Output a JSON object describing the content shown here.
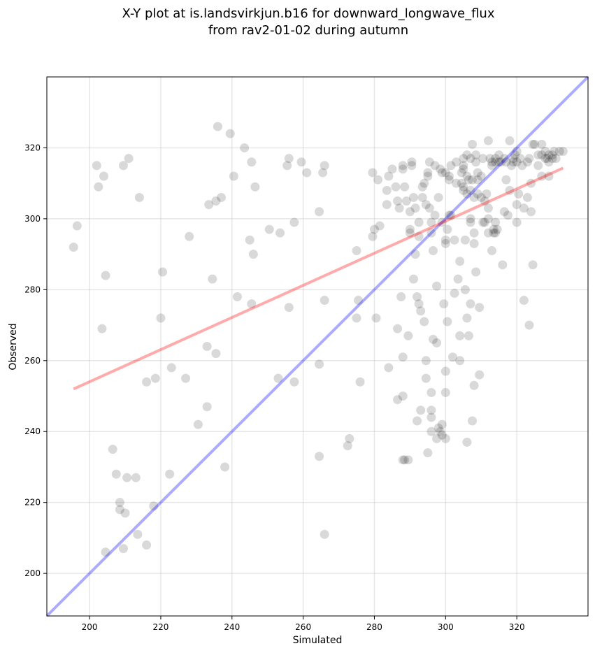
{
  "chart_data": {
    "type": "scatter",
    "title_line1": "X-Y plot at is.landsvirkjun.b16 for downward_longwave_flux",
    "title_line2": "from rav2-01-02 during autumn",
    "xlabel": "Simulated",
    "ylabel": "Observed",
    "xlim": [
      188,
      340
    ],
    "ylim": [
      188,
      340
    ],
    "xticks": [
      200,
      220,
      240,
      260,
      280,
      300,
      320
    ],
    "yticks": [
      200,
      220,
      240,
      260,
      280,
      300,
      320
    ],
    "grid": true,
    "colors": {
      "points": "#000000",
      "one_to_one": "#0000ff",
      "fit": "#ff0000"
    },
    "points": [
      [
        195.5,
        292
      ],
      [
        196.5,
        298
      ],
      [
        202,
        315
      ],
      [
        202.5,
        309
      ],
      [
        203.5,
        269
      ],
      [
        204,
        312
      ],
      [
        204.5,
        284
      ],
      [
        209.5,
        315
      ],
      [
        211,
        317
      ],
      [
        214,
        306
      ],
      [
        204.5,
        206
      ],
      [
        206.5,
        235
      ],
      [
        207.5,
        228
      ],
      [
        208.5,
        220
      ],
      [
        208.5,
        218
      ],
      [
        209.5,
        207
      ],
      [
        210,
        217
      ],
      [
        210.5,
        227
      ],
      [
        213,
        227
      ],
      [
        213.5,
        211
      ],
      [
        216,
        254
      ],
      [
        216,
        208
      ],
      [
        218,
        219
      ],
      [
        218.5,
        255
      ],
      [
        220.5,
        285
      ],
      [
        220,
        272
      ],
      [
        222.5,
        228
      ],
      [
        223,
        258
      ],
      [
        227,
        255
      ],
      [
        228,
        295
      ],
      [
        230.5,
        242
      ],
      [
        233,
        264
      ],
      [
        233.5,
        304
      ],
      [
        233,
        247
      ],
      [
        234.5,
        283
      ],
      [
        235.5,
        305
      ],
      [
        236,
        326
      ],
      [
        235.5,
        262
      ],
      [
        237,
        306
      ],
      [
        238,
        230
      ],
      [
        239.5,
        324
      ],
      [
        240.5,
        312
      ],
      [
        241.5,
        278
      ],
      [
        243.5,
        320
      ],
      [
        245,
        294
      ],
      [
        245.5,
        316
      ],
      [
        245.5,
        276
      ],
      [
        246,
        290
      ],
      [
        246.5,
        309
      ],
      [
        250.5,
        297
      ],
      [
        253.5,
        296
      ],
      [
        253,
        255
      ],
      [
        255.5,
        315
      ],
      [
        256,
        317
      ],
      [
        256,
        275
      ],
      [
        257.5,
        254
      ],
      [
        257.5,
        299
      ],
      [
        259.5,
        316
      ],
      [
        261,
        313
      ],
      [
        264.5,
        302
      ],
      [
        264.5,
        259
      ],
      [
        264.5,
        233
      ],
      [
        265.5,
        313
      ],
      [
        266,
        315
      ],
      [
        266,
        277
      ],
      [
        266,
        211
      ],
      [
        272.5,
        236
      ],
      [
        273,
        238
      ],
      [
        275,
        291
      ],
      [
        275,
        272
      ],
      [
        275.5,
        277
      ],
      [
        276,
        254
      ],
      [
        279.5,
        313
      ],
      [
        279.5,
        295
      ],
      [
        280,
        297
      ],
      [
        280.5,
        272
      ],
      [
        281,
        311
      ],
      [
        281.5,
        298
      ],
      [
        283.5,
        304
      ],
      [
        283.5,
        308
      ],
      [
        284,
        312
      ],
      [
        284,
        258
      ],
      [
        285,
        314
      ],
      [
        286,
        309
      ],
      [
        286.5,
        305
      ],
      [
        286.5,
        269
      ],
      [
        286.5,
        249
      ],
      [
        287,
        303
      ],
      [
        287.5,
        278
      ],
      [
        288,
        314
      ],
      [
        288,
        315
      ],
      [
        288,
        261
      ],
      [
        288,
        250
      ],
      [
        288,
        232
      ],
      [
        288.5,
        309
      ],
      [
        288.5,
        232
      ],
      [
        289,
        305
      ],
      [
        289.5,
        232
      ],
      [
        289.5,
        267
      ],
      [
        290,
        296
      ],
      [
        290,
        302
      ],
      [
        290,
        297
      ],
      [
        290.5,
        315
      ],
      [
        290.5,
        316
      ],
      [
        291,
        283
      ],
      [
        291,
        306
      ],
      [
        291.5,
        303
      ],
      [
        291.5,
        290
      ],
      [
        292,
        278
      ],
      [
        292,
        243
      ],
      [
        292.5,
        299
      ],
      [
        292.5,
        276
      ],
      [
        292.5,
        295
      ],
      [
        293,
        274
      ],
      [
        293,
        246
      ],
      [
        293.5,
        306
      ],
      [
        293.5,
        309
      ],
      [
        294,
        310
      ],
      [
        294,
        271
      ],
      [
        294.5,
        260
      ],
      [
        294.5,
        255
      ],
      [
        294.5,
        304
      ],
      [
        295,
        313
      ],
      [
        295,
        312
      ],
      [
        295,
        234
      ],
      [
        295.5,
        316
      ],
      [
        295.5,
        303
      ],
      [
        296,
        299
      ],
      [
        296,
        296
      ],
      [
        296,
        251
      ],
      [
        296,
        246
      ],
      [
        296,
        244
      ],
      [
        296,
        240
      ],
      [
        296.5,
        291
      ],
      [
        296.5,
        266
      ],
      [
        297,
        301
      ],
      [
        297,
        315
      ],
      [
        297.5,
        281
      ],
      [
        297.5,
        265
      ],
      [
        297.5,
        238
      ],
      [
        298,
        306
      ],
      [
        298,
        241
      ],
      [
        298.5,
        314
      ],
      [
        298.5,
        240
      ],
      [
        299,
        299
      ],
      [
        299,
        313
      ],
      [
        299,
        242
      ],
      [
        299,
        239
      ],
      [
        299.5,
        276
      ],
      [
        300,
        313
      ],
      [
        300,
        294
      ],
      [
        300,
        293
      ],
      [
        300,
        238
      ],
      [
        300,
        257
      ],
      [
        300,
        251
      ],
      [
        300.5,
        271
      ],
      [
        300.5,
        297
      ],
      [
        301,
        311
      ],
      [
        301,
        312
      ],
      [
        301,
        301
      ],
      [
        301.5,
        315
      ],
      [
        301.5,
        301
      ],
      [
        302,
        261
      ],
      [
        302.5,
        279
      ],
      [
        302.5,
        294
      ],
      [
        303,
        310
      ],
      [
        303,
        316
      ],
      [
        303.5,
        283
      ],
      [
        304,
        288
      ],
      [
        304,
        267
      ],
      [
        304,
        260
      ],
      [
        304.5,
        310
      ],
      [
        304.5,
        313
      ],
      [
        305,
        314
      ],
      [
        305,
        317
      ],
      [
        305,
        315
      ],
      [
        305,
        309
      ],
      [
        305,
        308
      ],
      [
        305.5,
        280
      ],
      [
        305.5,
        294
      ],
      [
        306,
        272
      ],
      [
        306,
        237
      ],
      [
        306,
        318
      ],
      [
        306,
        312
      ],
      [
        306,
        307
      ],
      [
        306.5,
        311
      ],
      [
        306.5,
        267
      ],
      [
        307,
        300
      ],
      [
        307,
        276
      ],
      [
        307,
        299
      ],
      [
        307,
        317
      ],
      [
        307,
        308
      ],
      [
        307.5,
        243
      ],
      [
        307.5,
        321
      ],
      [
        307.5,
        311
      ],
      [
        308,
        293
      ],
      [
        308,
        296
      ],
      [
        308,
        306
      ],
      [
        308,
        253
      ],
      [
        308.5,
        318
      ],
      [
        308.5,
        316
      ],
      [
        308.5,
        285
      ],
      [
        309,
        313
      ],
      [
        309,
        307
      ],
      [
        309,
        311
      ],
      [
        309.5,
        256
      ],
      [
        309.5,
        275
      ],
      [
        310,
        306
      ],
      [
        310,
        312
      ],
      [
        310.5,
        317
      ],
      [
        310.5,
        299
      ],
      [
        311,
        305
      ],
      [
        311,
        299
      ],
      [
        311.5,
        307
      ],
      [
        312,
        303
      ],
      [
        312,
        296
      ],
      [
        312,
        322
      ],
      [
        312,
        300
      ],
      [
        312.5,
        317
      ],
      [
        313,
        316
      ],
      [
        313,
        315
      ],
      [
        313,
        291
      ],
      [
        313.5,
        296
      ],
      [
        313.5,
        297
      ],
      [
        314,
        299
      ],
      [
        314,
        317
      ],
      [
        314,
        316
      ],
      [
        314,
        296
      ],
      [
        314.5,
        297
      ],
      [
        315,
        316
      ],
      [
        315,
        318
      ],
      [
        315.5,
        316
      ],
      [
        316,
        287
      ],
      [
        316.5,
        317
      ],
      [
        316.5,
        302
      ],
      [
        317,
        316
      ],
      [
        317,
        311
      ],
      [
        317.5,
        301
      ],
      [
        318,
        322
      ],
      [
        318,
        308
      ],
      [
        318.5,
        315
      ],
      [
        319,
        317
      ],
      [
        319,
        316
      ],
      [
        319.5,
        318
      ],
      [
        320,
        319
      ],
      [
        320,
        304
      ],
      [
        320,
        299
      ],
      [
        320,
        316
      ],
      [
        320.5,
        307
      ],
      [
        321,
        317
      ],
      [
        321.5,
        315
      ],
      [
        322,
        303
      ],
      [
        322,
        277
      ],
      [
        323,
        316
      ],
      [
        323,
        306
      ],
      [
        323.5,
        317
      ],
      [
        323.5,
        270
      ],
      [
        324,
        302
      ],
      [
        324,
        310
      ],
      [
        324.5,
        287
      ],
      [
        324.5,
        321
      ],
      [
        325,
        321
      ],
      [
        326,
        315
      ],
      [
        326,
        318
      ],
      [
        327,
        318
      ],
      [
        327,
        321
      ],
      [
        327,
        312
      ],
      [
        328,
        319
      ],
      [
        328,
        317
      ],
      [
        328.5,
        317
      ],
      [
        329,
        318
      ],
      [
        329,
        316
      ],
      [
        329,
        312
      ],
      [
        330,
        318
      ],
      [
        330,
        317
      ],
      [
        330.5,
        319
      ],
      [
        331,
        317
      ],
      [
        332,
        319
      ],
      [
        333,
        319
      ]
    ],
    "one_to_one_line": [
      [
        188,
        188
      ],
      [
        340,
        340
      ]
    ],
    "fit_line": [
      [
        195.5,
        252
      ],
      [
        333,
        314.3
      ]
    ]
  }
}
